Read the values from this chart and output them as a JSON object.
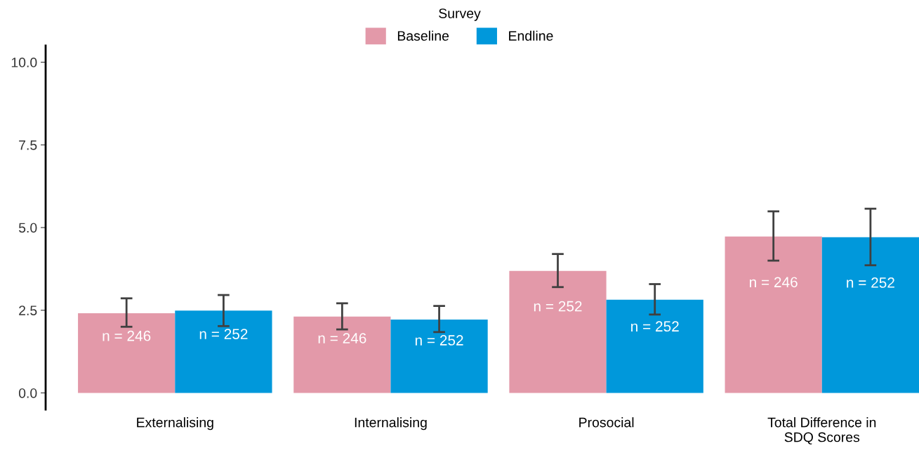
{
  "chart_data": {
    "type": "bar",
    "categories": [
      "Externalising",
      "Internalising",
      "Prosocial",
      "Total Difference in\nSDQ Scores"
    ],
    "series": [
      {
        "name": "Baseline",
        "color": "#e399a9",
        "values": [
          2.41,
          2.31,
          3.69,
          4.73
        ],
        "errors": [
          [
            2.0,
            2.86
          ],
          [
            1.92,
            2.71
          ],
          [
            3.2,
            4.2
          ],
          [
            4.0,
            5.49
          ]
        ]
      },
      {
        "name": "Endline",
        "color": "#0098db",
        "values": [
          2.49,
          2.22,
          2.82,
          4.71
        ],
        "errors": [
          [
            2.02,
            2.96
          ],
          [
            1.84,
            2.63
          ],
          [
            2.37,
            3.29
          ],
          [
            3.86,
            5.57
          ]
        ]
      }
    ],
    "annotations": [
      "n = 246",
      "n = 246",
      "n = 252",
      "n = 246",
      "n = 252",
      "n = 252",
      "n = 252",
      "n = 252"
    ],
    "legend_title": "Survey",
    "legend": "top",
    "ylim": [
      -0.5,
      10.5
    ],
    "yticks": [
      {
        "value": 0,
        "label": "0.0"
      },
      {
        "value": 2.5,
        "label": "2.5"
      },
      {
        "value": 5,
        "label": "5.0"
      },
      {
        "value": 7.5,
        "label": "7.5"
      },
      {
        "value": 10,
        "label": "10.0"
      }
    ],
    "grid": false
  }
}
